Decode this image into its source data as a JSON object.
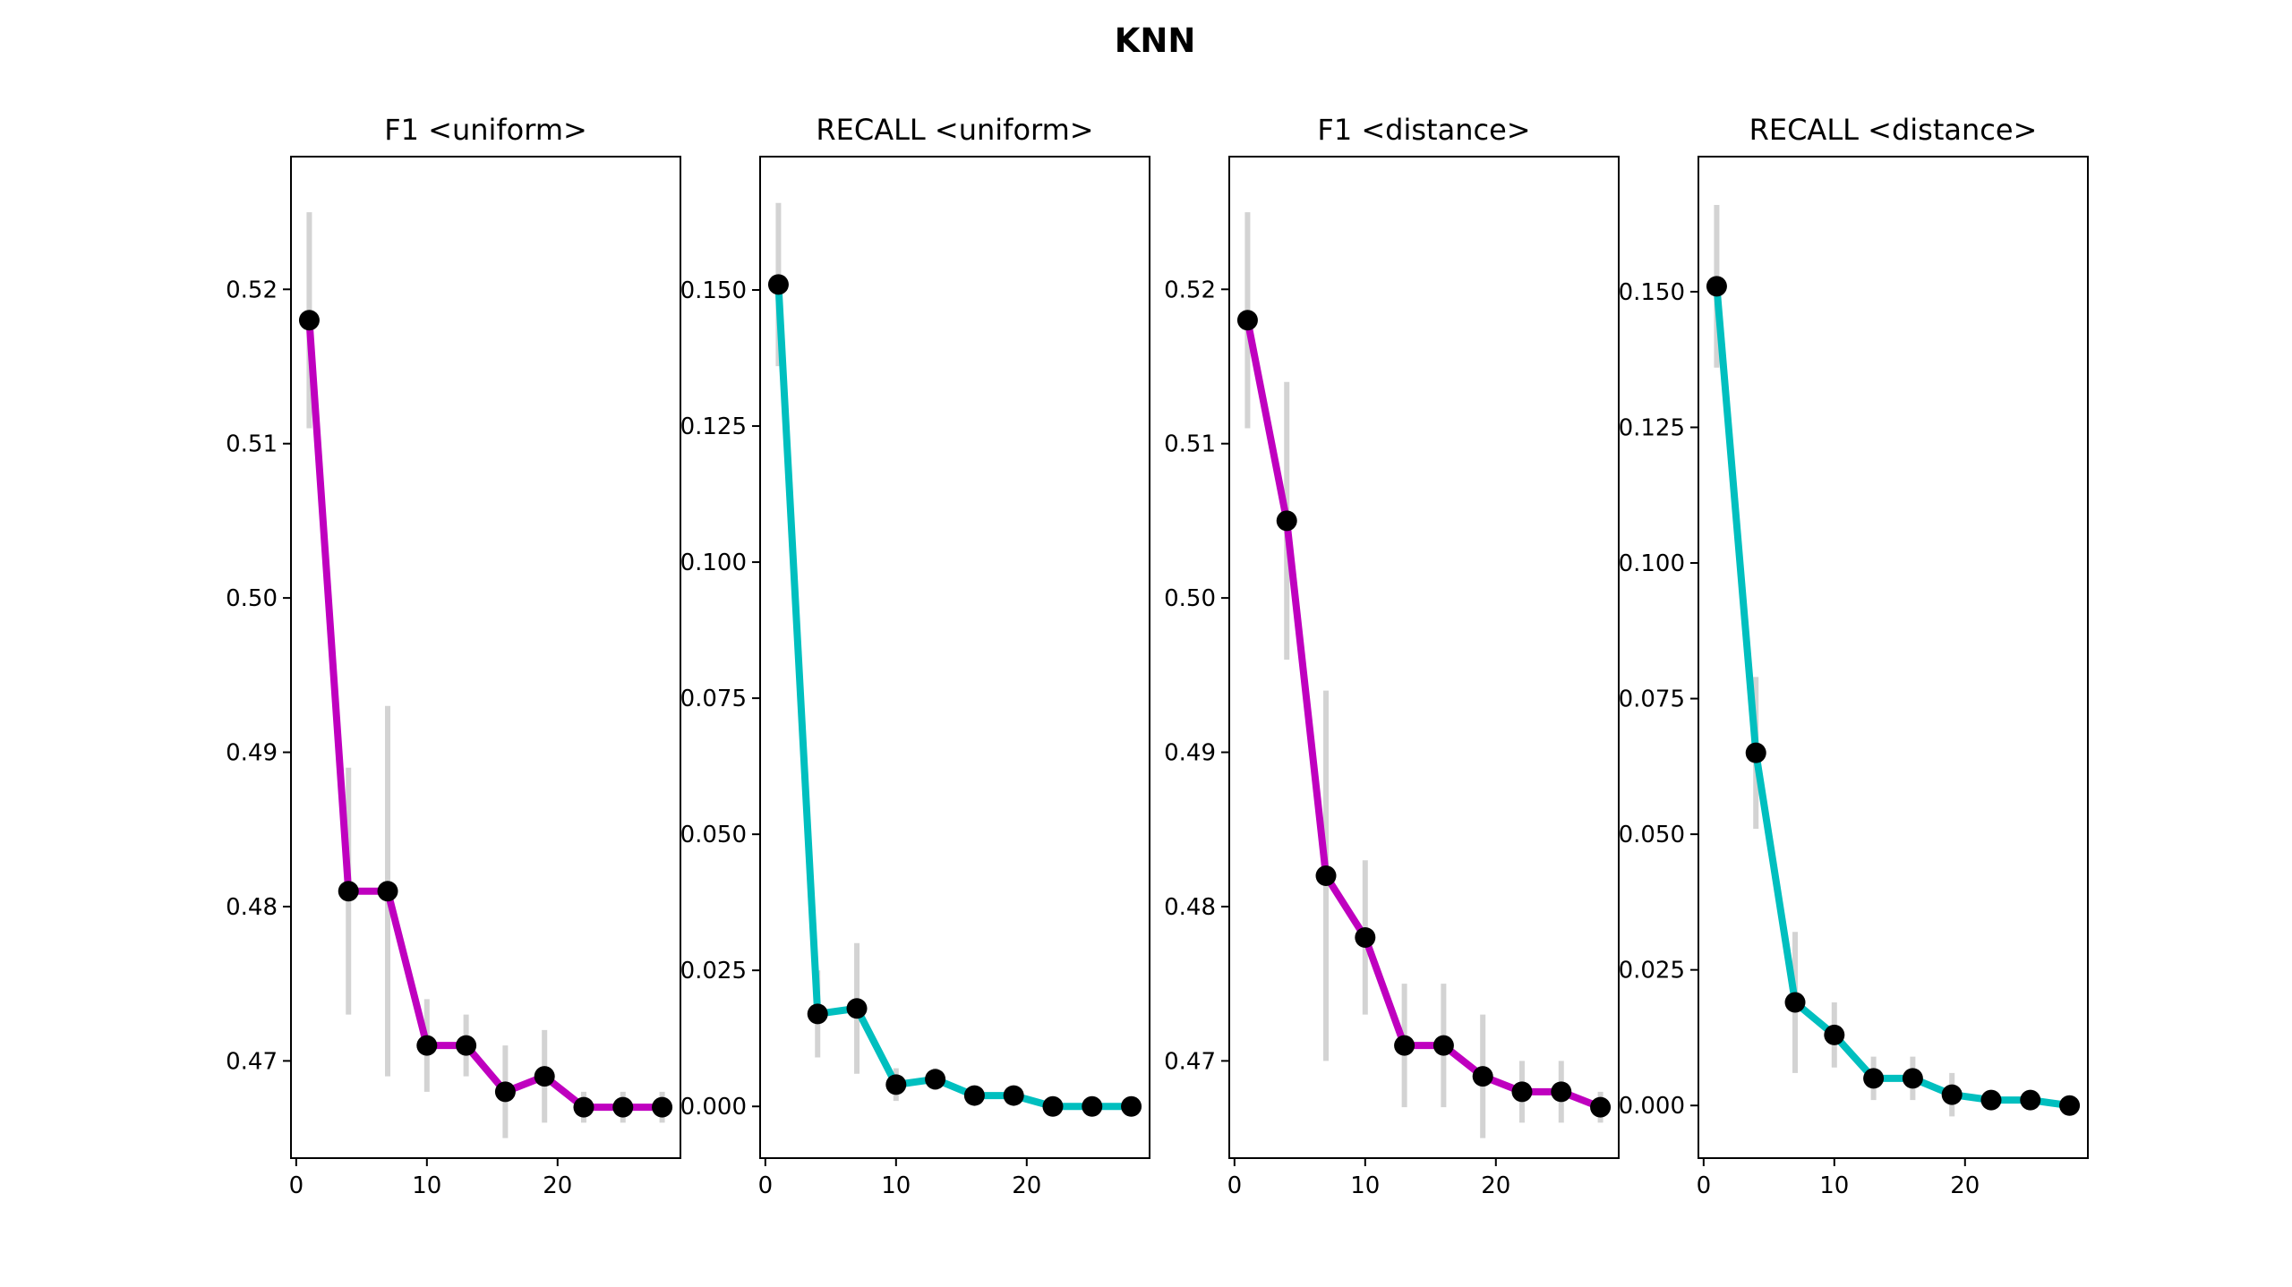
{
  "figure": {
    "title": "KNN"
  },
  "colors": {
    "f1_line": "#bf00bf",
    "recall_line": "#00bfbf",
    "marker": "#000000",
    "error_bar": "#d3d3d3"
  },
  "chart_data": [
    {
      "type": "line",
      "title": "F1 <uniform>",
      "xlabel": "",
      "ylabel": "",
      "x": [
        1,
        4,
        7,
        10,
        13,
        16,
        19,
        22,
        25,
        28
      ],
      "series": [
        {
          "values": [
            0.518,
            0.481,
            0.481,
            0.471,
            0.471,
            0.468,
            0.469,
            0.467,
            0.467,
            0.467
          ],
          "error_low": [
            0.511,
            0.473,
            0.469,
            0.468,
            0.469,
            0.465,
            0.466,
            0.466,
            0.466,
            0.466
          ],
          "error_high": [
            0.525,
            0.489,
            0.493,
            0.474,
            0.473,
            0.471,
            0.472,
            0.468,
            0.468,
            0.468
          ]
        }
      ],
      "xlim": [
        -0.4,
        29.4
      ],
      "ylim": [
        0.4637,
        0.5286
      ],
      "xticks": [
        "0",
        "10",
        "20"
      ],
      "xtick_values": [
        0,
        10,
        20
      ],
      "yticks": [
        "0.47",
        "0.48",
        "0.49",
        "0.50",
        "0.51",
        "0.52"
      ],
      "ytick_values": [
        0.47,
        0.48,
        0.49,
        0.5,
        0.51,
        0.52
      ],
      "color_key": "f1_line",
      "grid": false
    },
    {
      "type": "line",
      "title": "RECALL <uniform>",
      "xlabel": "",
      "ylabel": "",
      "x": [
        1,
        4,
        7,
        10,
        13,
        16,
        19,
        22,
        25,
        28
      ],
      "series": [
        {
          "values": [
            0.151,
            0.017,
            0.018,
            0.004,
            0.005,
            0.002,
            0.002,
            0.0,
            0.0,
            0.0
          ],
          "error_low": [
            0.136,
            0.009,
            0.006,
            0.001,
            0.003,
            0.001,
            0.001,
            0.0,
            0.0,
            0.0
          ],
          "error_high": [
            0.166,
            0.025,
            0.03,
            0.007,
            0.007,
            0.003,
            0.003,
            0.0,
            0.0,
            0.0
          ]
        }
      ],
      "xlim": [
        -0.4,
        29.4
      ],
      "ylim": [
        -0.0095,
        0.1745
      ],
      "xticks": [
        "0",
        "10",
        "20"
      ],
      "xtick_values": [
        0,
        10,
        20
      ],
      "yticks": [
        "0.000",
        "0.025",
        "0.050",
        "0.075",
        "0.100",
        "0.125",
        "0.150"
      ],
      "ytick_values": [
        0.0,
        0.025,
        0.05,
        0.075,
        0.1,
        0.125,
        0.15
      ],
      "color_key": "recall_line",
      "grid": false
    },
    {
      "type": "line",
      "title": "F1 <distance>",
      "xlabel": "",
      "ylabel": "",
      "x": [
        1,
        4,
        7,
        10,
        13,
        16,
        19,
        22,
        25,
        28
      ],
      "series": [
        {
          "values": [
            0.518,
            0.505,
            0.482,
            0.478,
            0.471,
            0.471,
            0.469,
            0.468,
            0.468,
            0.467
          ],
          "error_low": [
            0.511,
            0.496,
            0.47,
            0.473,
            0.467,
            0.467,
            0.465,
            0.466,
            0.466,
            0.466
          ],
          "error_high": [
            0.525,
            0.514,
            0.494,
            0.483,
            0.475,
            0.475,
            0.473,
            0.47,
            0.47,
            0.468
          ]
        }
      ],
      "xlim": [
        -0.4,
        29.4
      ],
      "ylim": [
        0.4637,
        0.5286
      ],
      "xticks": [
        "0",
        "10",
        "20"
      ],
      "xtick_values": [
        0,
        10,
        20
      ],
      "yticks": [
        "0.47",
        "0.48",
        "0.49",
        "0.50",
        "0.51",
        "0.52"
      ],
      "ytick_values": [
        0.47,
        0.48,
        0.49,
        0.5,
        0.51,
        0.52
      ],
      "color_key": "f1_line",
      "grid": false
    },
    {
      "type": "line",
      "title": "RECALL <distance>",
      "xlabel": "",
      "ylabel": "",
      "x": [
        1,
        4,
        7,
        10,
        13,
        16,
        19,
        22,
        25,
        28
      ],
      "series": [
        {
          "values": [
            0.151,
            0.065,
            0.019,
            0.013,
            0.005,
            0.005,
            0.002,
            0.001,
            0.001,
            0.0
          ],
          "error_low": [
            0.136,
            0.051,
            0.006,
            0.007,
            0.001,
            0.001,
            -0.002,
            0.0,
            0.0,
            0.0
          ],
          "error_high": [
            0.166,
            0.079,
            0.032,
            0.019,
            0.009,
            0.009,
            0.006,
            0.002,
            0.002,
            0.001
          ]
        }
      ],
      "xlim": [
        -0.4,
        29.4
      ],
      "ylim": [
        -0.0097,
        0.1749
      ],
      "xticks": [
        "0",
        "10",
        "20"
      ],
      "xtick_values": [
        0,
        10,
        20
      ],
      "yticks": [
        "0.000",
        "0.025",
        "0.050",
        "0.075",
        "0.100",
        "0.125",
        "0.150"
      ],
      "ytick_values": [
        0.0,
        0.025,
        0.05,
        0.075,
        0.1,
        0.125,
        0.15
      ],
      "color_key": "recall_line",
      "grid": false
    }
  ]
}
